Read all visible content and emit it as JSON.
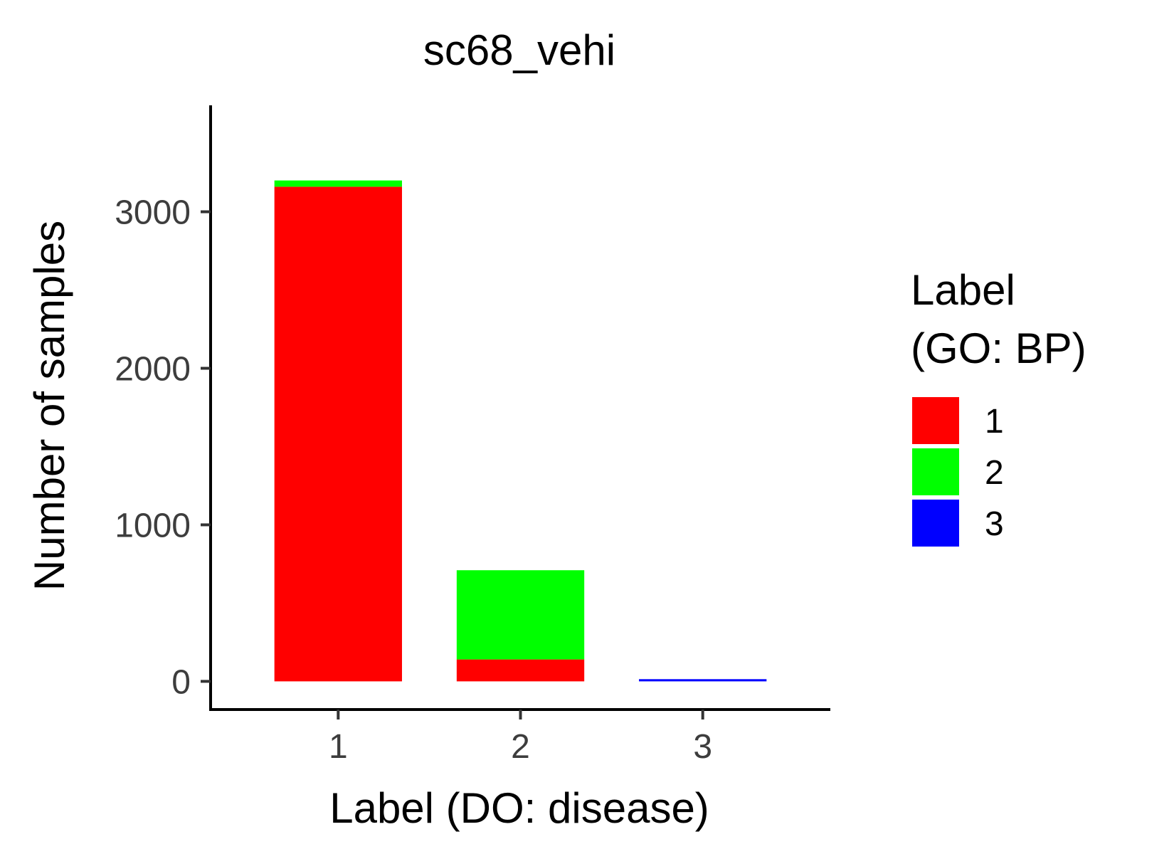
{
  "chart_data": {
    "type": "bar",
    "stacked": true,
    "title": "sc68_vehi",
    "xlabel": "Label (DO: disease)",
    "ylabel": "Number of samples",
    "categories": [
      "1",
      "2",
      "3"
    ],
    "series": [
      {
        "name": "1",
        "color": "#FF0000",
        "values": [
          3160,
          140,
          0
        ]
      },
      {
        "name": "2",
        "color": "#00FF00",
        "values": [
          40,
          570,
          0
        ]
      },
      {
        "name": "3",
        "color": "#0000FF",
        "values": [
          0,
          0,
          14
        ]
      }
    ],
    "ylim": [
      -180,
      3680
    ],
    "yticks": [
      0,
      1000,
      2000,
      3000
    ],
    "legend": {
      "title_line1": "Label",
      "title_line2": "(GO: BP)",
      "position": "right"
    },
    "grid": false
  }
}
